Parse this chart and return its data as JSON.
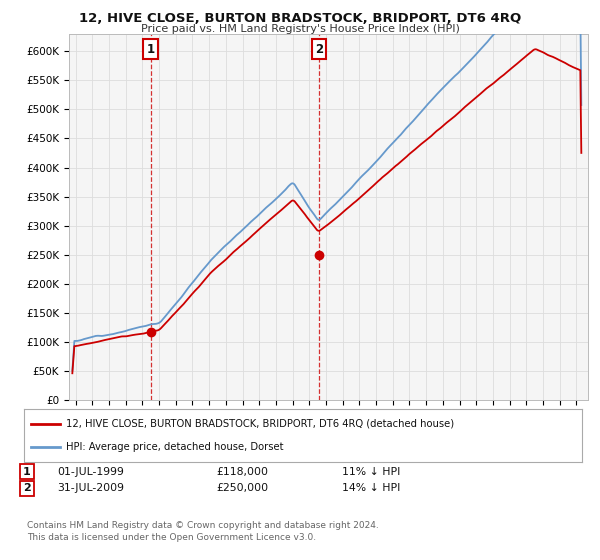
{
  "title": "12, HIVE CLOSE, BURTON BRADSTOCK, BRIDPORT, DT6 4RQ",
  "subtitle": "Price paid vs. HM Land Registry's House Price Index (HPI)",
  "ylabel_ticks": [
    "£0",
    "£50K",
    "£100K",
    "£150K",
    "£200K",
    "£250K",
    "£300K",
    "£350K",
    "£400K",
    "£450K",
    "£500K",
    "£550K",
    "£600K"
  ],
  "ytick_values": [
    0,
    50000,
    100000,
    150000,
    200000,
    250000,
    300000,
    350000,
    400000,
    450000,
    500000,
    550000,
    600000
  ],
  "ylim": [
    0,
    630000
  ],
  "red_line_color": "#cc0000",
  "blue_line_color": "#6699cc",
  "purchase1_year": 1999.5,
  "purchase1_price": 118000,
  "purchase2_year": 2009.58,
  "purchase2_price": 250000,
  "legend_red": "12, HIVE CLOSE, BURTON BRADSTOCK, BRIDPORT, DT6 4RQ (detached house)",
  "legend_blue": "HPI: Average price, detached house, Dorset",
  "table_row1": "01-JUL-1999",
  "table_val1": "£118,000",
  "table_hpi1": "11% ↓ HPI",
  "table_row2": "31-JUL-2009",
  "table_val2": "£250,000",
  "table_hpi2": "14% ↓ HPI",
  "footnote_line1": "Contains HM Land Registry data © Crown copyright and database right 2024.",
  "footnote_line2": "This data is licensed under the Open Government Licence v3.0.",
  "background_color": "#ffffff",
  "plot_bg_color": "#f5f5f5"
}
